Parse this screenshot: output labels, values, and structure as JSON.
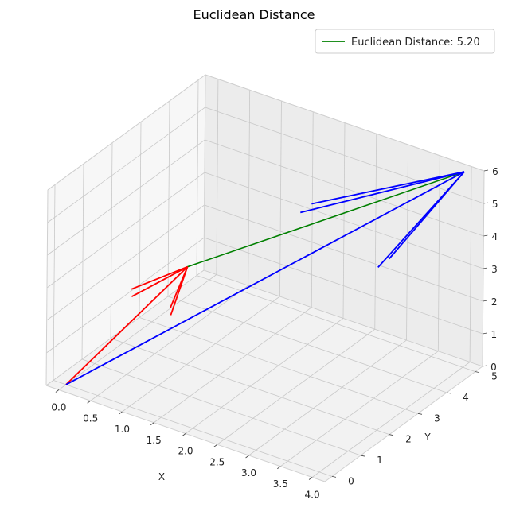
{
  "chart_data": {
    "type": "line-3d",
    "title": "Euclidean Distance",
    "xlabel": "X",
    "ylabel": "Y",
    "zlabel": "",
    "xlim": [
      -0.2,
      4.2
    ],
    "ylim": [
      -0.25,
      5.25
    ],
    "zlim": [
      0,
      6
    ],
    "x_ticks": [
      "0.0",
      "0.5",
      "1.0",
      "1.5",
      "2.0",
      "2.5",
      "3.0",
      "3.5",
      "4.0"
    ],
    "y_ticks": [
      "0",
      "1",
      "2",
      "3",
      "4",
      "5"
    ],
    "z_ticks": [
      "0",
      "1",
      "2",
      "3",
      "4",
      "5",
      "6"
    ],
    "grid": true,
    "legend": {
      "placement": "top-right",
      "entries": [
        {
          "label": "Euclidean Distance: 5.20",
          "color": "#008000"
        }
      ]
    },
    "point_a": [
      1,
      2,
      3
    ],
    "point_b": [
      4,
      5,
      6
    ],
    "vectors": [
      {
        "name": "",
        "color": "#ff0000",
        "from": [
          0,
          0,
          0
        ],
        "to": [
          1,
          2,
          3
        ]
      },
      {
        "name": "",
        "color": "#0000ff",
        "from": [
          0,
          0,
          0
        ],
        "to": [
          4,
          5,
          6
        ]
      }
    ],
    "distance_line": {
      "color": "#008000",
      "from": [
        1,
        2,
        3
      ],
      "to": [
        4,
        5,
        6
      ]
    },
    "pane_colors": {
      "face": "#f2f2f2",
      "grid": "#c8c8c8",
      "edge": "#dddddd"
    }
  }
}
